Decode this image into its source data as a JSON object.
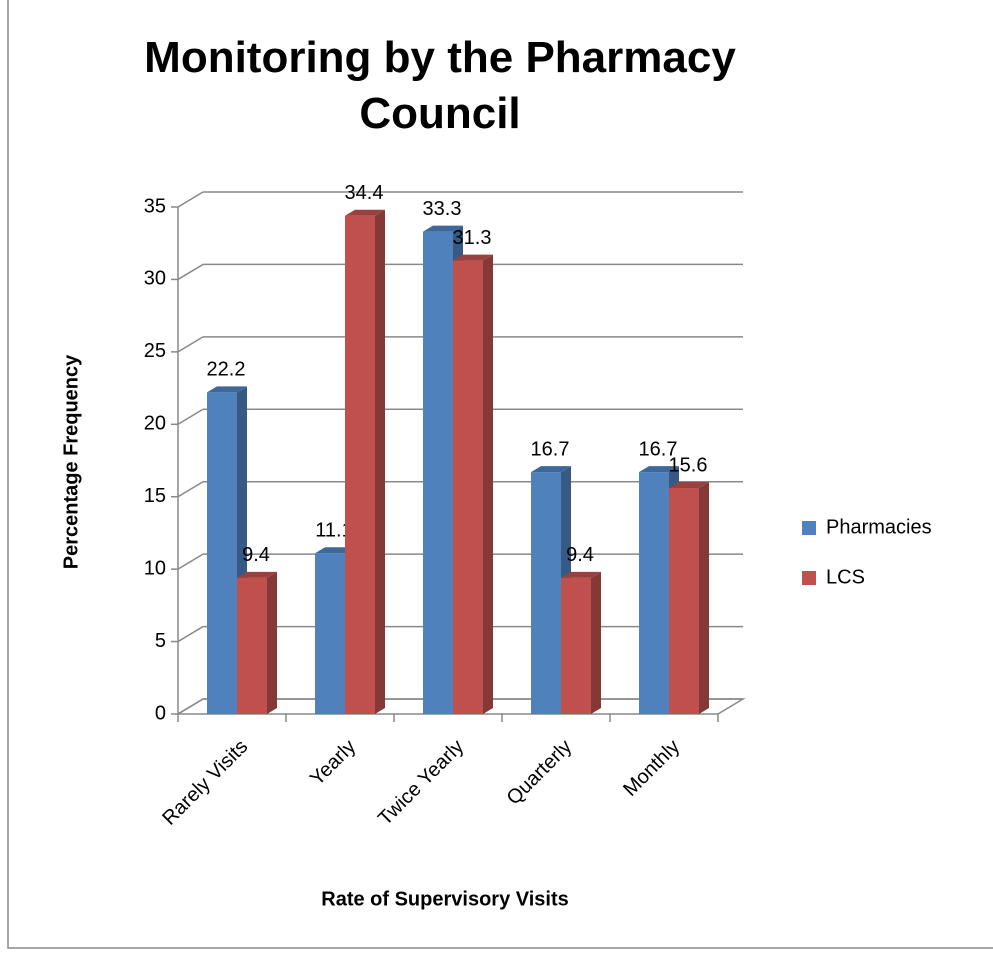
{
  "chart_data": {
    "type": "bar3d",
    "title": "Monitoring by the Pharmacy Council",
    "x_label": "Rate of Supervisory Visits",
    "y_label": "Percentage Frequency",
    "categories": [
      "Rarely Visits",
      "Yearly",
      "Twice Yearly",
      "Quarterly",
      "Monthly"
    ],
    "series": [
      {
        "name": "Pharmacies",
        "color": "#4f81bd",
        "values": [
          22.2,
          11.1,
          33.3,
          16.7,
          16.7
        ]
      },
      {
        "name": "LCS",
        "color": "#c0504d",
        "values": [
          9.4,
          34.4,
          31.3,
          9.4,
          15.6
        ]
      }
    ],
    "ylim": [
      0,
      35
    ],
    "yticks": [
      0,
      5,
      10,
      15,
      20,
      25,
      30,
      35
    ],
    "grid": true,
    "legend": "right"
  }
}
